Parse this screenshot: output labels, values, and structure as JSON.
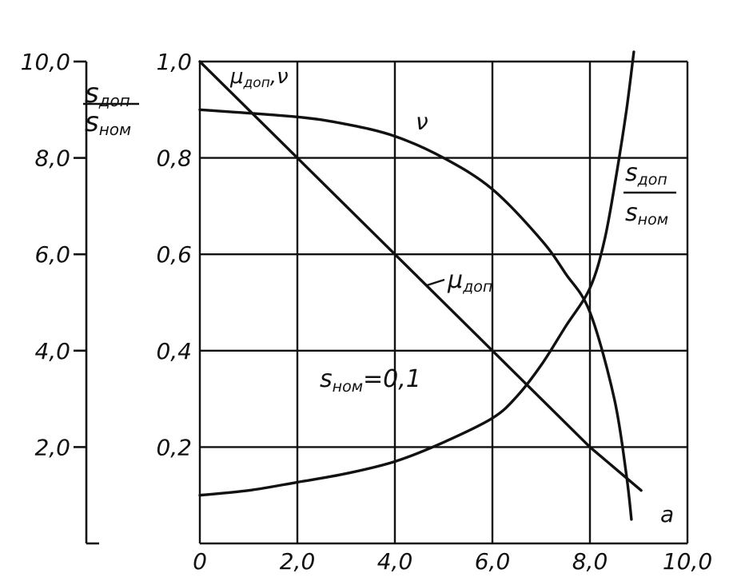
{
  "chart_data": {
    "type": "line",
    "x": {
      "label": "a",
      "range": [
        0,
        10
      ],
      "ticks": [
        "0",
        "2,0",
        "4,0",
        "6,0",
        "8,0",
        "10,0"
      ]
    },
    "y_left": {
      "label_num": "s",
      "label_num_sub": "доп",
      "label_den": "s",
      "label_den_sub": "ном",
      "range": [
        0,
        10
      ],
      "ticks": [
        "2,0",
        "4,0",
        "6,0",
        "8,0",
        "10,0"
      ]
    },
    "y_right": {
      "label_main": "μ",
      "label_sub": "доп",
      "label_tail": ",ν",
      "range": [
        0,
        1
      ],
      "ticks": [
        "0,2",
        "0,4",
        "0,6",
        "0,8",
        "1,0"
      ]
    },
    "grid": true,
    "annotation": {
      "text_main": "s",
      "text_sub": "ном",
      "text_rest": "=0,1"
    },
    "series": [
      {
        "name": "ν",
        "axis": "right",
        "points": [
          [
            0,
            0.9
          ],
          [
            2,
            0.885
          ],
          [
            3,
            0.87
          ],
          [
            4,
            0.845
          ],
          [
            5,
            0.8
          ],
          [
            6,
            0.735
          ],
          [
            7,
            0.63
          ],
          [
            7.5,
            0.56
          ],
          [
            8,
            0.48
          ],
          [
            8.5,
            0.3
          ],
          [
            8.75,
            0.14
          ],
          [
            8.85,
            0.05
          ]
        ]
      },
      {
        "name": "μ",
        "name_sub": "доп",
        "axis": "right",
        "points": [
          [
            0,
            1.0
          ],
          [
            2,
            0.8
          ],
          [
            4,
            0.6
          ],
          [
            6,
            0.4
          ],
          [
            8,
            0.2
          ],
          [
            9.05,
            0.11
          ]
        ]
      },
      {
        "name": "s",
        "name_sub": "доп",
        "den": "s",
        "den_sub": "ном",
        "axis": "left",
        "points": [
          [
            0,
            1.0
          ],
          [
            1,
            1.1
          ],
          [
            2,
            1.27
          ],
          [
            3,
            1.45
          ],
          [
            4,
            1.7
          ],
          [
            5,
            2.1
          ],
          [
            6,
            2.6
          ],
          [
            6.5,
            3.05
          ],
          [
            7,
            3.7
          ],
          [
            7.5,
            4.5
          ],
          [
            8,
            5.3
          ],
          [
            8.3,
            6.3
          ],
          [
            8.55,
            7.7
          ],
          [
            8.75,
            9.0
          ],
          [
            8.9,
            10.2
          ]
        ]
      }
    ]
  }
}
